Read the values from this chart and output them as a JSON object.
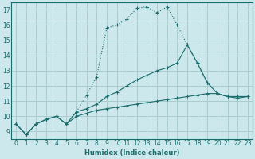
{
  "xlabel": "Humidex (Indice chaleur)",
  "ylabel": "",
  "background_color": "#cce8ec",
  "grid_color": "#aacccc",
  "line_color": "#1a6b6b",
  "xlim": [
    -0.5,
    23.5
  ],
  "ylim": [
    8.5,
    17.5
  ],
  "xticks": [
    0,
    1,
    2,
    3,
    4,
    5,
    6,
    7,
    8,
    9,
    10,
    11,
    12,
    13,
    14,
    15,
    16,
    17,
    18,
    19,
    20,
    21,
    22,
    23
  ],
  "yticks": [
    9,
    10,
    11,
    12,
    13,
    14,
    15,
    16,
    17
  ],
  "curve1_x": [
    0,
    1,
    2,
    3,
    4,
    5,
    6,
    7,
    8,
    9,
    10,
    11,
    12,
    13,
    14,
    15,
    16,
    17,
    18,
    19,
    20,
    21,
    22,
    23
  ],
  "curve1_y": [
    9.5,
    8.8,
    9.5,
    9.8,
    10.0,
    9.5,
    10.3,
    11.4,
    12.6,
    15.8,
    16.0,
    16.4,
    17.1,
    17.2,
    16.8,
    17.2,
    16.0,
    14.7,
    13.5,
    12.2,
    11.5,
    11.3,
    11.3,
    11.3
  ],
  "curve2_x": [
    0,
    1,
    2,
    3,
    4,
    5,
    6,
    7,
    8,
    9,
    10,
    11,
    12,
    13,
    14,
    15,
    16,
    17,
    18,
    19,
    20,
    21,
    22,
    23
  ],
  "curve2_y": [
    9.5,
    8.8,
    9.5,
    9.8,
    10.0,
    9.5,
    10.3,
    10.5,
    10.8,
    11.3,
    11.6,
    12.0,
    12.4,
    12.7,
    13.0,
    13.2,
    13.5,
    14.7,
    13.5,
    12.2,
    11.5,
    11.3,
    11.3,
    11.3
  ],
  "curve3_x": [
    0,
    1,
    2,
    3,
    4,
    5,
    6,
    7,
    8,
    9,
    10,
    11,
    12,
    13,
    14,
    15,
    16,
    17,
    18,
    19,
    20,
    21,
    22,
    23
  ],
  "curve3_y": [
    9.5,
    8.8,
    9.5,
    9.8,
    10.0,
    9.5,
    10.0,
    10.2,
    10.4,
    10.5,
    10.6,
    10.7,
    10.8,
    10.9,
    11.0,
    11.1,
    11.2,
    11.3,
    11.4,
    11.5,
    11.5,
    11.3,
    11.2,
    11.3
  ]
}
